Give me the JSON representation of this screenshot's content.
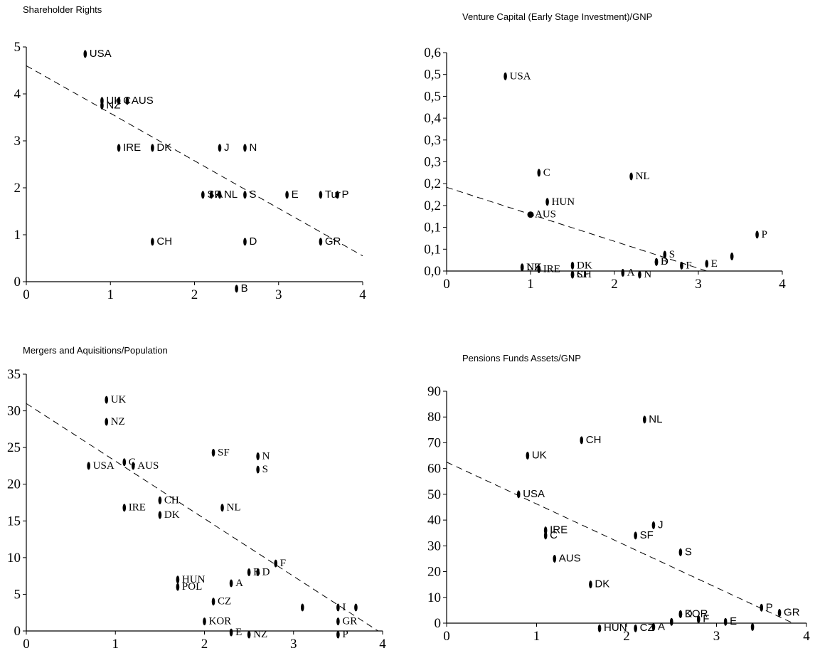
{
  "chart_data": [
    {
      "type": "scatter",
      "title": "Shareholder Rights",
      "xlim": [
        0,
        4
      ],
      "ylim": [
        0,
        5
      ],
      "xticks": [
        "0",
        "1",
        "2",
        "3",
        "4"
      ],
      "yticks": [
        "0",
        "1",
        "2",
        "3",
        "4",
        "5"
      ],
      "trend": {
        "x0": 0,
        "y0": 4.6,
        "x1": 4,
        "y1": 0.55
      },
      "points": [
        {
          "label": "USA",
          "x": 0.7,
          "y": 4.85
        },
        {
          "label": "UK",
          "x": 0.9,
          "y": 3.85
        },
        {
          "label": "NZ",
          "x": 0.9,
          "y": 3.75
        },
        {
          "label": "C",
          "x": 1.1,
          "y": 3.85
        },
        {
          "label": "AUS",
          "x": 1.2,
          "y": 3.85
        },
        {
          "label": "IRE",
          "x": 1.1,
          "y": 2.85
        },
        {
          "label": "DK",
          "x": 1.5,
          "y": 2.85
        },
        {
          "label": "J",
          "x": 2.3,
          "y": 2.85
        },
        {
          "label": "N",
          "x": 2.6,
          "y": 2.85
        },
        {
          "label": "SF",
          "x": 2.1,
          "y": 1.85
        },
        {
          "label": "A",
          "x": 2.2,
          "y": 1.85
        },
        {
          "label": "NL",
          "x": 2.3,
          "y": 1.85
        },
        {
          "label": "S",
          "x": 2.6,
          "y": 1.85
        },
        {
          "label": "E",
          "x": 3.1,
          "y": 1.85
        },
        {
          "label": "Tur",
          "x": 3.5,
          "y": 1.85
        },
        {
          "label": "P",
          "x": 3.7,
          "y": 1.85
        },
        {
          "label": "CH",
          "x": 1.5,
          "y": 0.85
        },
        {
          "label": "D",
          "x": 2.6,
          "y": 0.85
        },
        {
          "label": "GR",
          "x": 3.5,
          "y": 0.85
        },
        {
          "label": "B",
          "x": 2.5,
          "y": -0.15
        }
      ]
    },
    {
      "type": "scatter",
      "title": "Venture Capital (Early Stage Investment)/GNP",
      "xlim": [
        0,
        4
      ],
      "ylim": [
        0,
        0.6
      ],
      "xticks": [
        "0",
        "1",
        "2",
        "3",
        "4"
      ],
      "yticks": [
        "0,0",
        "0,1",
        "0,1",
        "0,2",
        "0,2",
        "0,3",
        "0,3",
        "0,4",
        "0,5",
        "0,5",
        "0,6"
      ],
      "trend": {
        "x0": 0,
        "y0": 0.23,
        "x1": 3.1,
        "y1": 0
      },
      "points": [
        {
          "label": "USA",
          "x": 0.7,
          "y": 0.535
        },
        {
          "label": "C",
          "x": 1.1,
          "y": 0.27
        },
        {
          "label": "NL",
          "x": 2.2,
          "y": 0.26
        },
        {
          "label": "AUS",
          "x": 1.0,
          "y": 0.155
        },
        {
          "label": "HUN",
          "x": 1.2,
          "y": 0.19
        },
        {
          "label": "P",
          "x": 3.7,
          "y": 0.1
        },
        {
          "label": "NZ",
          "x": 0.9,
          "y": 0.01
        },
        {
          "label": "UK",
          "x": 0.9,
          "y": 0.01
        },
        {
          "label": "IRE",
          "x": 1.1,
          "y": 0.005
        },
        {
          "label": "DK",
          "x": 1.5,
          "y": 0.015
        },
        {
          "label": "CH",
          "x": 1.5,
          "y": -0.01
        },
        {
          "label": "SF",
          "x": 1.5,
          "y": -0.01
        },
        {
          "label": "A",
          "x": 2.1,
          "y": -0.005
        },
        {
          "label": "N",
          "x": 2.3,
          "y": -0.01
        },
        {
          "label": "B",
          "x": 2.5,
          "y": 0.025
        },
        {
          "label": "D",
          "x": 2.5,
          "y": 0.025
        },
        {
          "label": "S",
          "x": 2.6,
          "y": 0.045
        },
        {
          "label": "F",
          "x": 2.8,
          "y": 0.015
        },
        {
          "label": "E",
          "x": 3.1,
          "y": 0.02
        },
        {
          "label": "",
          "x": 3.4,
          "y": 0.04
        }
      ]
    },
    {
      "type": "scatter",
      "title": "Mergers and Aquisitions/Population",
      "xlim": [
        0,
        4
      ],
      "ylim": [
        0,
        35
      ],
      "xticks": [
        "0",
        "1",
        "2",
        "3",
        "4"
      ],
      "yticks": [
        "0",
        "5",
        "10",
        "15",
        "20",
        "25",
        "30",
        "35"
      ],
      "trend": {
        "x0": 0,
        "y0": 31,
        "x1": 3.95,
        "y1": 0
      },
      "points": [
        {
          "label": "UK",
          "x": 0.9,
          "y": 31.5
        },
        {
          "label": "NZ",
          "x": 0.9,
          "y": 28.5
        },
        {
          "label": "USA",
          "x": 0.7,
          "y": 22.5
        },
        {
          "label": "C",
          "x": 1.1,
          "y": 23
        },
        {
          "label": "AUS",
          "x": 1.2,
          "y": 22.5
        },
        {
          "label": "SF",
          "x": 2.1,
          "y": 24.3
        },
        {
          "label": "N",
          "x": 2.6,
          "y": 23.8
        },
        {
          "label": "S",
          "x": 2.6,
          "y": 22
        },
        {
          "label": "CH",
          "x": 1.5,
          "y": 17.8
        },
        {
          "label": "IRE",
          "x": 1.1,
          "y": 16.8
        },
        {
          "label": "DK",
          "x": 1.5,
          "y": 15.8
        },
        {
          "label": "NL",
          "x": 2.2,
          "y": 16.8
        },
        {
          "label": "B",
          "x": 2.5,
          "y": 8
        },
        {
          "label": "F",
          "x": 2.8,
          "y": 9.2
        },
        {
          "label": "HUN",
          "x": 1.7,
          "y": 7
        },
        {
          "label": "POL",
          "x": 1.7,
          "y": 6
        },
        {
          "label": "A",
          "x": 2.3,
          "y": 6.5
        },
        {
          "label": "D",
          "x": 2.6,
          "y": 8
        },
        {
          "label": "CZ",
          "x": 2.1,
          "y": 4
        },
        {
          "label": "KOR",
          "x": 2.0,
          "y": 1.3
        },
        {
          "label": "",
          "x": 3.1,
          "y": 3.2
        },
        {
          "label": "I",
          "x": 3.5,
          "y": 3.2
        },
        {
          "label": "",
          "x": 3.7,
          "y": 3.2
        },
        {
          "label": "GR",
          "x": 3.5,
          "y": 1.3
        },
        {
          "label": "P",
          "x": 3.5,
          "y": -0.5
        },
        {
          "label": "E",
          "x": 2.3,
          "y": -0.2
        },
        {
          "label": "NZ",
          "x": 2.5,
          "y": -0.5
        }
      ]
    },
    {
      "type": "scatter",
      "title": "Pensions Funds Assets/GNP",
      "xlim": [
        0,
        4
      ],
      "ylim": [
        0,
        90
      ],
      "xticks": [
        "0",
        "1",
        "2",
        "3",
        "4"
      ],
      "yticks": [
        "0",
        "10",
        "20",
        "30",
        "40",
        "50",
        "60",
        "70",
        "80",
        "90"
      ],
      "trend": {
        "x0": 0,
        "y0": 62.5,
        "x1": 3.85,
        "y1": 0
      },
      "points": [
        {
          "label": "NL",
          "x": 2.2,
          "y": 79
        },
        {
          "label": "CH",
          "x": 1.5,
          "y": 71
        },
        {
          "label": "UK",
          "x": 0.9,
          "y": 65
        },
        {
          "label": "USA",
          "x": 0.8,
          "y": 50
        },
        {
          "label": "IRE",
          "x": 1.1,
          "y": 36
        },
        {
          "label": "C",
          "x": 1.1,
          "y": 34
        },
        {
          "label": "SF",
          "x": 2.1,
          "y": 34
        },
        {
          "label": "J",
          "x": 2.3,
          "y": 38
        },
        {
          "label": "AUS",
          "x": 1.2,
          "y": 25
        },
        {
          "label": "S",
          "x": 2.6,
          "y": 27.5
        },
        {
          "label": "DK",
          "x": 1.6,
          "y": 15
        },
        {
          "label": "KOR",
          "x": 2.6,
          "y": 3.5
        },
        {
          "label": "D",
          "x": 2.6,
          "y": 3.5
        },
        {
          "label": "HUN",
          "x": 1.7,
          "y": -2
        },
        {
          "label": "CZ",
          "x": 2.1,
          "y": -2
        },
        {
          "label": "A",
          "x": 2.3,
          "y": -1.5
        },
        {
          "label": "F",
          "x": 2.8,
          "y": 1.5
        },
        {
          "label": "E",
          "x": 3.1,
          "y": 0.5
        },
        {
          "label": "",
          "x": 2.5,
          "y": 0.5
        },
        {
          "label": "",
          "x": 3.4,
          "y": -1.5
        },
        {
          "label": "P",
          "x": 3.5,
          "y": 6
        },
        {
          "label": "GR",
          "x": 3.7,
          "y": 4
        }
      ]
    }
  ]
}
